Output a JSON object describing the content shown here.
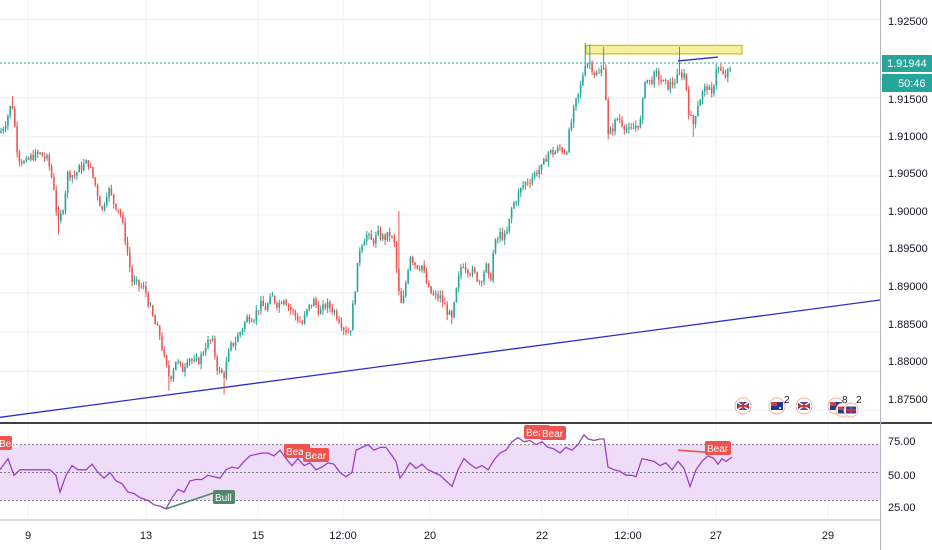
{
  "colors": {
    "up": "#26a69a",
    "down": "#ef5350",
    "trendline": "#2f2ccc",
    "price_line": "#26a69a",
    "rsi_line": "#9c40c4",
    "rsi_band": "#eedcf8",
    "zone_fill": "#f6ef9c",
    "zone_border": "#c9b100",
    "bear": "#ef5350",
    "bull": "#4e8a6a"
  },
  "icons": [
    "uk-flag-icon",
    "au-flag-icon",
    "uk-flag-icon",
    "au-flag-icon",
    "au-flag-icon",
    "uk-flag-icon"
  ],
  "badges": {
    "events_2a": "2",
    "events_8": "8",
    "events_2b": "2"
  },
  "price_axis": {
    "ticks": [
      "1.92500",
      "1.91500",
      "1.91000",
      "1.90500",
      "1.90000",
      "1.89500",
      "1.89000",
      "1.88500",
      "1.88000",
      "1.87500"
    ],
    "current_price": "1.91944",
    "countdown": "50:46"
  },
  "rsi_axis": {
    "ticks": [
      "75.00",
      "50.00",
      "25.00"
    ]
  },
  "time_axis": {
    "ticks": [
      "9",
      "13",
      "15",
      "12:00",
      "20",
      "22",
      "12:00",
      "27",
      "29"
    ]
  },
  "labels": {
    "bear_1": "Bear",
    "bear_2": "Bear",
    "bear_3": "Bear",
    "bear_4": "Bear",
    "bear_5": "Bear",
    "bear_6": "Bear",
    "bull_1": "Bull"
  },
  "chart_data": {
    "type": "candlestick",
    "ylim": [
      1.8735,
      1.9275
    ],
    "rsi_ylim": [
      17.5,
      84
    ],
    "x_ticks": [
      {
        "label": "9",
        "t": 28
      },
      {
        "label": "13",
        "t": 146
      },
      {
        "label": "15",
        "t": 258
      },
      {
        "label": "12:00",
        "t": 343
      },
      {
        "label": "20",
        "t": 430
      },
      {
        "label": "22",
        "t": 542
      },
      {
        "label": "12:00",
        "t": 628
      },
      {
        "label": "27",
        "t": 716
      },
      {
        "label": "29",
        "t": 828
      }
    ],
    "close_path": [
      [
        0,
        1.9105
      ],
      [
        6,
        1.912
      ],
      [
        12,
        1.9145
      ],
      [
        18,
        1.9075
      ],
      [
        25,
        1.9065
      ],
      [
        32,
        1.9075
      ],
      [
        40,
        1.9078
      ],
      [
        48,
        1.907
      ],
      [
        54,
        1.9035
      ],
      [
        58,
        1.8985
      ],
      [
        63,
        1.901
      ],
      [
        68,
        1.9055
      ],
      [
        74,
        1.905
      ],
      [
        80,
        1.906
      ],
      [
        88,
        1.9068
      ],
      [
        95,
        1.904
      ],
      [
        102,
        1.9005
      ],
      [
        108,
        1.9035
      ],
      [
        114,
        1.9015
      ],
      [
        120,
        1.9005
      ],
      [
        126,
        1.8965
      ],
      [
        132,
        1.8915
      ],
      [
        138,
        1.891
      ],
      [
        145,
        1.8905
      ],
      [
        150,
        1.888
      ],
      [
        155,
        1.886
      ],
      [
        160,
        1.8845
      ],
      [
        165,
        1.881
      ],
      [
        170,
        1.879
      ],
      [
        176,
        1.8815
      ],
      [
        182,
        1.88
      ],
      [
        188,
        1.882
      ],
      [
        194,
        1.881
      ],
      [
        200,
        1.8815
      ],
      [
        206,
        1.8835
      ],
      [
        212,
        1.884
      ],
      [
        218,
        1.88
      ],
      [
        224,
        1.8795
      ],
      [
        230,
        1.883
      ],
      [
        236,
        1.884
      ],
      [
        242,
        1.8855
      ],
      [
        248,
        1.887
      ],
      [
        254,
        1.887
      ],
      [
        260,
        1.8885
      ],
      [
        266,
        1.888
      ],
      [
        272,
        1.8895
      ],
      [
        278,
        1.8885
      ],
      [
        284,
        1.8895
      ],
      [
        290,
        1.888
      ],
      [
        296,
        1.887
      ],
      [
        302,
        1.886
      ],
      [
        308,
        1.888
      ],
      [
        314,
        1.889
      ],
      [
        320,
        1.8875
      ],
      [
        326,
        1.8885
      ],
      [
        332,
        1.888
      ],
      [
        338,
        1.887
      ],
      [
        344,
        1.8855
      ],
      [
        350,
        1.885
      ],
      [
        355,
        1.8905
      ],
      [
        360,
        1.896
      ],
      [
        366,
        1.8975
      ],
      [
        372,
        1.8965
      ],
      [
        378,
        1.8975
      ],
      [
        384,
        1.897
      ],
      [
        390,
        1.8975
      ],
      [
        395,
        1.896
      ],
      [
        398,
        1.8905
      ],
      [
        402,
        1.888
      ],
      [
        406,
        1.8915
      ],
      [
        410,
        1.895
      ],
      [
        416,
        1.8935
      ],
      [
        422,
        1.8935
      ],
      [
        428,
        1.8905
      ],
      [
        434,
        1.8895
      ],
      [
        440,
        1.8895
      ],
      [
        446,
        1.888
      ],
      [
        452,
        1.8865
      ],
      [
        456,
        1.89
      ],
      [
        462,
        1.894
      ],
      [
        468,
        1.893
      ],
      [
        474,
        1.8925
      ],
      [
        480,
        1.8915
      ],
      [
        486,
        1.8935
      ],
      [
        490,
        1.891
      ],
      [
        494,
        1.896
      ],
      [
        500,
        1.8975
      ],
      [
        506,
        1.897
      ],
      [
        512,
        1.901
      ],
      [
        518,
        1.9025
      ],
      [
        524,
        1.904
      ],
      [
        530,
        1.9045
      ],
      [
        536,
        1.9055
      ],
      [
        542,
        1.906
      ],
      [
        548,
        1.908
      ],
      [
        554,
        1.908
      ],
      [
        560,
        1.9085
      ],
      [
        566,
        1.908
      ],
      [
        570,
        1.911
      ],
      [
        575,
        1.914
      ],
      [
        580,
        1.916
      ],
      [
        585,
        1.9195
      ],
      [
        590,
        1.9195
      ],
      [
        595,
        1.918
      ],
      [
        600,
        1.918
      ],
      [
        604,
        1.9195
      ],
      [
        608,
        1.91
      ],
      [
        612,
        1.911
      ],
      [
        618,
        1.9125
      ],
      [
        624,
        1.9115
      ],
      [
        630,
        1.9105
      ],
      [
        636,
        1.9115
      ],
      [
        641,
        1.912
      ],
      [
        645,
        1.9175
      ],
      [
        650,
        1.917
      ],
      [
        656,
        1.918
      ],
      [
        662,
        1.917
      ],
      [
        668,
        1.9165
      ],
      [
        674,
        1.917
      ],
      [
        680,
        1.918
      ],
      [
        685,
        1.918
      ],
      [
        689,
        1.913
      ],
      [
        693,
        1.9115
      ],
      [
        697,
        1.914
      ],
      [
        702,
        1.9155
      ],
      [
        707,
        1.9165
      ],
      [
        712,
        1.915
      ],
      [
        716,
        1.919
      ],
      [
        720,
        1.9185
      ],
      [
        724,
        1.9175
      ],
      [
        728,
        1.9182
      ],
      [
        732,
        1.9186
      ]
    ],
    "wicks": [
      {
        "t": 12,
        "high": 1.9152
      },
      {
        "t": 58,
        "low": 1.8975
      },
      {
        "t": 170,
        "low": 1.8775
      },
      {
        "t": 224,
        "low": 1.877
      },
      {
        "t": 398,
        "high": 1.9005
      },
      {
        "t": 452,
        "low": 1.886
      },
      {
        "t": 585,
        "high": 1.922
      },
      {
        "t": 590,
        "high": 1.9218
      },
      {
        "t": 604,
        "high": 1.9215
      },
      {
        "t": 680,
        "high": 1.9215
      },
      {
        "t": 693,
        "low": 1.91
      }
    ],
    "trendline": {
      "from": {
        "t": 0,
        "price": 1.8741
      },
      "to": {
        "t": 932,
        "price": 1.89
      }
    },
    "zone": {
      "from": {
        "t": 586,
        "price": 1.9217
      },
      "to": {
        "t": 742,
        "price": 1.9206
      }
    },
    "top_line": {
      "from": {
        "t": 678,
        "price": 1.9197
      },
      "to": {
        "t": 718,
        "price": 1.9202
      }
    },
    "rsi_path": [
      [
        0,
        52
      ],
      [
        8,
        60
      ],
      [
        14,
        48
      ],
      [
        20,
        52
      ],
      [
        30,
        52
      ],
      [
        40,
        52
      ],
      [
        50,
        52
      ],
      [
        56,
        48
      ],
      [
        60,
        36
      ],
      [
        66,
        48
      ],
      [
        72,
        55
      ],
      [
        78,
        52
      ],
      [
        86,
        52
      ],
      [
        92,
        56
      ],
      [
        98,
        50
      ],
      [
        104,
        46
      ],
      [
        110,
        50
      ],
      [
        116,
        44
      ],
      [
        122,
        42
      ],
      [
        128,
        36
      ],
      [
        134,
        35
      ],
      [
        140,
        32
      ],
      [
        148,
        30
      ],
      [
        154,
        27
      ],
      [
        160,
        26
      ],
      [
        166,
        24
      ],
      [
        172,
        32
      ],
      [
        178,
        38
      ],
      [
        184,
        36
      ],
      [
        190,
        44
      ],
      [
        196,
        45
      ],
      [
        202,
        45
      ],
      [
        208,
        48
      ],
      [
        214,
        47
      ],
      [
        220,
        46
      ],
      [
        226,
        52
      ],
      [
        232,
        54
      ],
      [
        238,
        53
      ],
      [
        244,
        58
      ],
      [
        250,
        62
      ],
      [
        256,
        63
      ],
      [
        262,
        64
      ],
      [
        268,
        64
      ],
      [
        274,
        62
      ],
      [
        280,
        66
      ],
      [
        286,
        60
      ],
      [
        292,
        55
      ],
      [
        298,
        60
      ],
      [
        304,
        55
      ],
      [
        310,
        57
      ],
      [
        316,
        52
      ],
      [
        322,
        54
      ],
      [
        328,
        57
      ],
      [
        334,
        56
      ],
      [
        340,
        50
      ],
      [
        346,
        47
      ],
      [
        352,
        50
      ],
      [
        356,
        66
      ],
      [
        362,
        68
      ],
      [
        368,
        70
      ],
      [
        374,
        66
      ],
      [
        380,
        68
      ],
      [
        386,
        68
      ],
      [
        392,
        62
      ],
      [
        396,
        58
      ],
      [
        400,
        46
      ],
      [
        404,
        50
      ],
      [
        410,
        57
      ],
      [
        416,
        53
      ],
      [
        422,
        56
      ],
      [
        428,
        52
      ],
      [
        434,
        50
      ],
      [
        440,
        48
      ],
      [
        446,
        44
      ],
      [
        452,
        40
      ],
      [
        458,
        52
      ],
      [
        464,
        60
      ],
      [
        470,
        56
      ],
      [
        476,
        53
      ],
      [
        482,
        55
      ],
      [
        488,
        52
      ],
      [
        494,
        59
      ],
      [
        500,
        64
      ],
      [
        506,
        66
      ],
      [
        512,
        72
      ],
      [
        518,
        75
      ],
      [
        524,
        72
      ],
      [
        530,
        73
      ],
      [
        536,
        70
      ],
      [
        542,
        72
      ],
      [
        548,
        68
      ],
      [
        554,
        67
      ],
      [
        560,
        64
      ],
      [
        566,
        68
      ],
      [
        572,
        66
      ],
      [
        578,
        70
      ],
      [
        584,
        77
      ],
      [
        588,
        74
      ],
      [
        594,
        73
      ],
      [
        600,
        74
      ],
      [
        604,
        74
      ],
      [
        608,
        54
      ],
      [
        614,
        52
      ],
      [
        620,
        51
      ],
      [
        626,
        48
      ],
      [
        632,
        48
      ],
      [
        636,
        47
      ],
      [
        642,
        60
      ],
      [
        648,
        59
      ],
      [
        654,
        58
      ],
      [
        660,
        55
      ],
      [
        666,
        57
      ],
      [
        672,
        52
      ],
      [
        678,
        58
      ],
      [
        684,
        53
      ],
      [
        690,
        40
      ],
      [
        696,
        52
      ],
      [
        702,
        58
      ],
      [
        708,
        62
      ],
      [
        714,
        60
      ],
      [
        718,
        56
      ],
      [
        722,
        60
      ],
      [
        726,
        58
      ],
      [
        732,
        61
      ]
    ],
    "rsi_lines": [
      {
        "name": "bull",
        "from": {
          "t": 166,
          "v": 24
        },
        "to": {
          "t": 216,
          "v": 36
        }
      },
      {
        "name": "bear",
        "from": {
          "t": 678,
          "v": 66
        },
        "to": {
          "t": 716,
          "v": 64
        }
      }
    ]
  }
}
